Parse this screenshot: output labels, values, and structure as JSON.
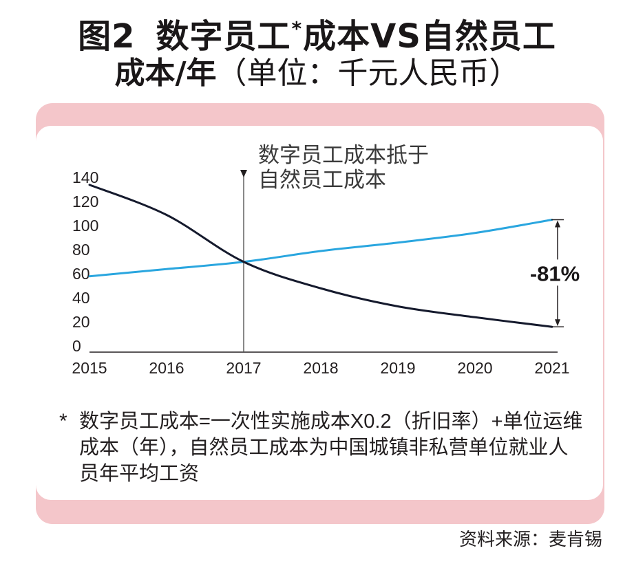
{
  "heading": {
    "fig_label": "图2",
    "part_a": "数字员工",
    "asterisk": "*",
    "part_b": "成本VS自然员工",
    "line2_bold": "成本/年",
    "line2_unit": "（单位：千元人民币）"
  },
  "chart_data": {
    "type": "line",
    "categories": [
      "2015",
      "2016",
      "2017",
      "2018",
      "2019",
      "2020",
      "2021"
    ],
    "series": [
      {
        "values": [
          139,
          114,
          75,
          53,
          38,
          29,
          21
        ],
        "color": "#151a2d"
      },
      {
        "values": [
          63,
          69,
          75,
          84,
          91,
          99,
          110
        ],
        "color": "#2aa6df"
      }
    ],
    "ylim": [
      0,
      140
    ],
    "y_ticks": [
      0,
      20,
      40,
      60,
      80,
      100,
      120,
      140
    ],
    "grid": false,
    "legend": "none",
    "annotations": {
      "crossover": {
        "at": "2017",
        "lines": [
          "数字员工成本抵于",
          "自然员工成本"
        ]
      },
      "change": {
        "at": "2021",
        "label": "-81%"
      }
    }
  },
  "footnote": {
    "marker": "*",
    "lines": [
      "数字员工成本=一次性实施成本X0.2（折旧率）+单位运维",
      "成本（年），自然员工成本为中国城镇非私营单位就业人",
      "员年平均工资"
    ]
  },
  "source": "资料来源：麦肯锡",
  "colors": {
    "panel": "#f4c6ca"
  }
}
